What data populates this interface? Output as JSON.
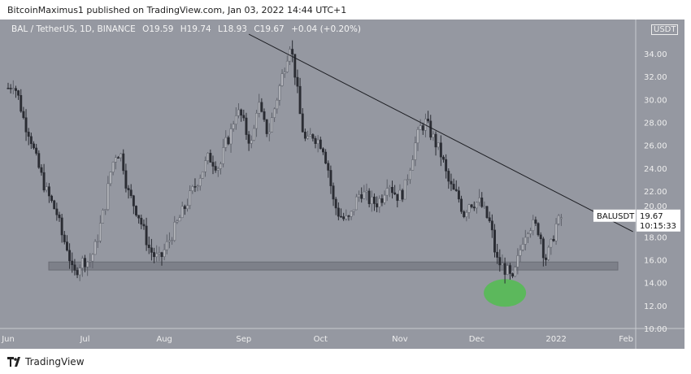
{
  "header": {
    "published": "BitcoinMaximus1 published on TradingView.com, Jan 03, 2022 14:44 UTC+1"
  },
  "legend": {
    "symbol": "BAL / TetherUS, 1D, BINANCE",
    "open": "O19.59",
    "high": "H19.74",
    "low": "L18.93",
    "close": "C19.67",
    "change": "+0.04 (+0.20%)"
  },
  "currency_badge": "USDT",
  "price_label": {
    "ticker": "BALUSDT",
    "price": "19.67",
    "countdown": "10:15:33"
  },
  "footer": {
    "brand": "TradingView"
  },
  "colors": {
    "background": "#9598a1",
    "up": "#b4b6bc",
    "down": "#2a2c33",
    "support_zone": "#7d8089",
    "highlight": "#5cb85c",
    "trendline": "#1e1f24"
  },
  "chart_data": {
    "type": "candlestick",
    "title": "BAL / TetherUS, 1D, BINANCE",
    "x_ticks": [
      "Jun",
      "Jul",
      "Aug",
      "Sep",
      "Oct",
      "Nov",
      "Dec",
      "2022",
      "Feb"
    ],
    "y_ticks": [
      "10.00",
      "12.00",
      "14.00",
      "16.00",
      "18.00",
      "20.00",
      "22.00",
      "24.00",
      "26.00",
      "28.00",
      "30.00",
      "32.00",
      "34.00"
    ],
    "ylim": [
      10,
      36.5
    ],
    "date_range": [
      "2021-06-01",
      "2022-01-03"
    ],
    "approx_closes": [
      31,
      31.5,
      30,
      28,
      27,
      25,
      23.5,
      22,
      21,
      20,
      18,
      17,
      14.5,
      15.5,
      16,
      15.8,
      17,
      19,
      21,
      24,
      25.5,
      25,
      22,
      21,
      20,
      18.5,
      17,
      16.3,
      16,
      17,
      18,
      19,
      20,
      21,
      22,
      23,
      24,
      25,
      24.5,
      24,
      26,
      27,
      29,
      28.5,
      27,
      26,
      30,
      28,
      27,
      29,
      31,
      33,
      35,
      32,
      28,
      26,
      27,
      26.5,
      26,
      24,
      21,
      20,
      19.5,
      19.5,
      21,
      22,
      21.5,
      21,
      21,
      21.5,
      23,
      22,
      21.5,
      22,
      24,
      26,
      27.5,
      28,
      27,
      26,
      25,
      23,
      22,
      21.5,
      20,
      21,
      21,
      21,
      20,
      19,
      16,
      15.5,
      15,
      14,
      16,
      18,
      19,
      19,
      18.5,
      16,
      17,
      19,
      19.67
    ],
    "trendline": {
      "from": [
        "2021-09-03",
        35.7
      ],
      "to": [
        "2022-01-31",
        18.45
      ]
    },
    "support_zone": [
      15.1,
      15.8
    ],
    "highlight": {
      "date": "2021-12-12",
      "price": 13.1
    }
  }
}
